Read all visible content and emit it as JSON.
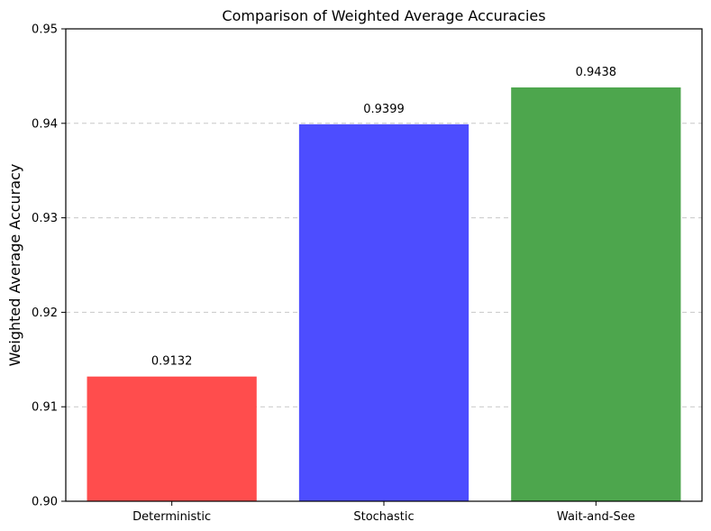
{
  "chart_data": {
    "type": "bar",
    "title": "Comparison of Weighted Average Accuracies",
    "xlabel": "",
    "ylabel": "Weighted Average Accuracy",
    "categories": [
      "Deterministic",
      "Stochastic",
      "Wait-and-See"
    ],
    "values": [
      0.9132,
      0.9399,
      0.9438
    ],
    "value_labels": [
      "0.9132",
      "0.9399",
      "0.9438"
    ],
    "colors": [
      "#ff4d4d",
      "#4d4dff",
      "#4da64d"
    ],
    "ylim": [
      0.9,
      0.95
    ],
    "yticks": [
      0.9,
      0.91,
      0.92,
      0.93,
      0.94,
      0.95
    ],
    "ytick_labels": [
      "0.90",
      "0.91",
      "0.92",
      "0.93",
      "0.94",
      "0.95"
    ],
    "grid": "y-dashed",
    "legend": "none"
  }
}
